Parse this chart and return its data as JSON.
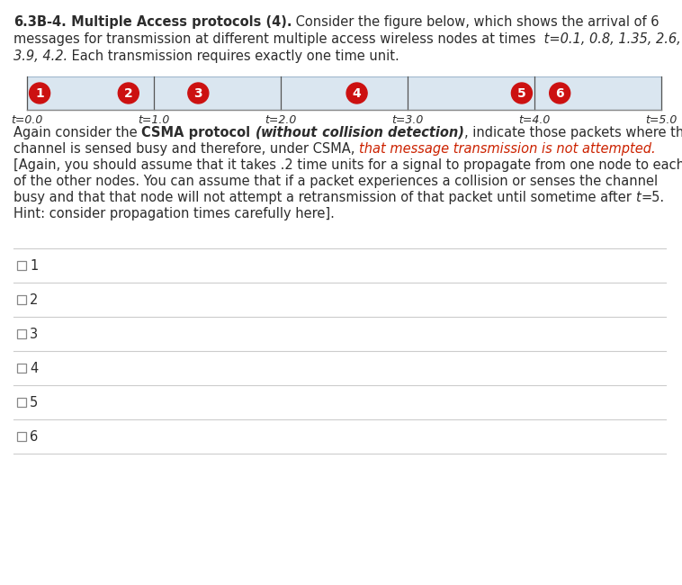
{
  "bg_color": "#ffffff",
  "body_text_color": "#2c2c2c",
  "red_text_color": "#cc2200",
  "timeline_bg": "#dae6f0",
  "timeline_border": "#a0b8cc",
  "tick_color": "#555555",
  "circle_color": "#cc1111",
  "circle_text_color": "#ffffff",
  "checkbox_color": "#888888",
  "separator_color": "#cccccc",
  "tick_times": [
    "t=0.0",
    "t=1.0",
    "t=2.0",
    "t=3.0",
    "t=4.0",
    "t=5.0"
  ],
  "tick_positions": [
    0.0,
    1.0,
    2.0,
    3.0,
    4.0,
    5.0
  ],
  "messages": [
    {
      "num": "1",
      "t": 0.1
    },
    {
      "num": "2",
      "t": 0.8
    },
    {
      "num": "3",
      "t": 1.35
    },
    {
      "num": "4",
      "t": 2.6
    },
    {
      "num": "5",
      "t": 3.9
    },
    {
      "num": "6",
      "t": 4.2
    }
  ],
  "checkboxes": [
    "1",
    "2",
    "3",
    "4",
    "5",
    "6"
  ],
  "fontsize": 10.5,
  "fontsize_tick": 9.0,
  "fontsize_circle": 10,
  "fontfamily": "DejaVu Sans"
}
